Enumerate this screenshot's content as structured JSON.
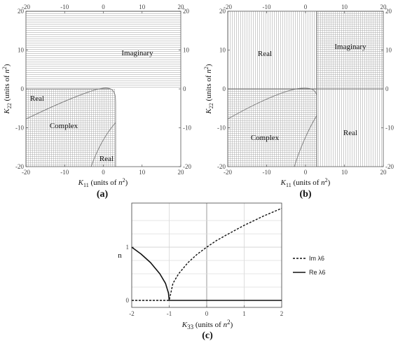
{
  "chart_data": [
    {
      "panel": "(a)",
      "type": "heatmap",
      "xlim": [
        -20,
        20
      ],
      "ylim": [
        -20,
        20
      ],
      "xticks": [
        "-20",
        "-10",
        "0",
        "10",
        "20"
      ],
      "yticks": [
        "-20",
        "-10",
        "0",
        "10",
        "20"
      ],
      "xlabel": {
        "sym": "K",
        "sub": "11",
        "rest": " (units of ",
        "unit": "n",
        "sup": "2",
        "close": ")"
      },
      "ylabel": {
        "sym": "K",
        "sub": "22",
        "rest": " (units of ",
        "unit": "n",
        "sup": "2",
        "close": ")"
      },
      "regions": [
        {
          "label": "Imaginary",
          "at": [
            7.5,
            9
          ],
          "hatch": "horizontal"
        },
        {
          "label": "Real",
          "at": [
            -16,
            -2.5
          ],
          "hatch": "grid"
        },
        {
          "label": "Complex",
          "at": [
            -10,
            -9
          ],
          "hatch": "grid"
        },
        {
          "label": "Real",
          "at": [
            0.5,
            -17.5
          ],
          "hatch": "grid"
        }
      ],
      "boundary_curve": {
        "vertex": [
          0,
          0
        ],
        "points": [
          [
            -20,
            -8
          ],
          [
            -10,
            -2.6
          ],
          [
            -2,
            -0.1
          ],
          [
            0,
            0
          ],
          [
            2,
            -1.2
          ],
          [
            3,
            -3.5
          ],
          [
            3,
            -8
          ],
          [
            0,
            -12
          ],
          [
            -3,
            -20
          ]
        ]
      }
    },
    {
      "panel": "(b)",
      "type": "heatmap",
      "xlim": [
        -20,
        20
      ],
      "ylim": [
        -20,
        20
      ],
      "xticks": [
        "-20",
        "-10",
        "0",
        "10",
        "20"
      ],
      "yticks": [
        "-20",
        "-10",
        "0",
        "10",
        "20"
      ],
      "xlabel": {
        "sym": "K",
        "sub": "11",
        "rest": " (units of ",
        "unit": "n",
        "sup": "2",
        "close": ")"
      },
      "ylabel": {
        "sym": "K",
        "sub": "22",
        "rest": " (units of ",
        "unit": "n",
        "sup": "2",
        "close": ")"
      },
      "regions": [
        {
          "label": "Imaginary",
          "at": [
            11,
            10.5
          ],
          "hatch": "grid"
        },
        {
          "label": "Real",
          "at": [
            -8.5,
            9
          ],
          "hatch": "vertical"
        },
        {
          "label": "Complex",
          "at": [
            -8.5,
            -9
          ],
          "hatch": "grid"
        },
        {
          "label": "Real",
          "at": [
            11,
            -11.5
          ],
          "hatch": "vertical"
        }
      ],
      "divider": {
        "x": 3,
        "y": 0
      }
    },
    {
      "panel": "(c)",
      "type": "line",
      "xlim": [
        -2,
        2
      ],
      "ylim": [
        0,
        1.75
      ],
      "xticks": [
        "-2",
        "-1",
        "0",
        "1",
        "2"
      ],
      "yticks": [
        "0",
        "1"
      ],
      "xlabel": {
        "sym": "K",
        "sub": "33",
        "rest": " (units of ",
        "unit": "n",
        "sup": "2",
        "close": ")"
      },
      "ylabel": "n",
      "series": [
        {
          "name": "Im λ6",
          "style": "dashed",
          "x": [
            -2,
            -1.5,
            -1,
            -0.9,
            -0.75,
            -0.5,
            -0.25,
            0,
            0.25,
            0.5,
            1,
            1.5,
            2
          ],
          "y": [
            0,
            0,
            0,
            0.32,
            0.5,
            0.71,
            0.87,
            1.0,
            1.12,
            1.22,
            1.41,
            1.58,
            1.73
          ]
        },
        {
          "name": "Re λ6",
          "style": "solid",
          "x": [
            -2,
            -1.75,
            -1.5,
            -1.25,
            -1.1,
            -1.02,
            -1,
            -0.5,
            0,
            1,
            2
          ],
          "y": [
            1.0,
            0.87,
            0.71,
            0.5,
            0.32,
            0.14,
            0,
            0,
            0,
            0,
            0
          ]
        }
      ]
    }
  ]
}
